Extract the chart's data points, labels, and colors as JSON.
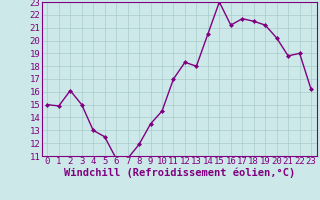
{
  "x": [
    0,
    1,
    2,
    3,
    4,
    5,
    6,
    7,
    8,
    9,
    10,
    11,
    12,
    13,
    14,
    15,
    16,
    17,
    18,
    19,
    20,
    21,
    22,
    23
  ],
  "y": [
    15.0,
    14.9,
    16.1,
    15.0,
    13.0,
    12.5,
    10.8,
    10.8,
    11.9,
    13.5,
    14.5,
    17.0,
    18.3,
    18.0,
    20.5,
    23.0,
    21.2,
    21.7,
    21.5,
    21.2,
    20.2,
    18.8,
    19.0,
    16.2
  ],
  "line_color": "#800080",
  "marker": "D",
  "marker_size": 2,
  "bg_color": "#cce8e8",
  "grid_color": "#aacccc",
  "xlabel": "Windchill (Refroidissement éolien,°C)",
  "xlim": [
    -0.5,
    23.5
  ],
  "ylim": [
    11,
    23
  ],
  "xticks": [
    0,
    1,
    2,
    3,
    4,
    5,
    6,
    7,
    8,
    9,
    10,
    11,
    12,
    13,
    14,
    15,
    16,
    17,
    18,
    19,
    20,
    21,
    22,
    23
  ],
  "yticks": [
    11,
    12,
    13,
    14,
    15,
    16,
    17,
    18,
    19,
    20,
    21,
    22,
    23
  ],
  "xlabel_fontsize": 7.5,
  "tick_fontsize": 6.5,
  "line_width": 1.0
}
